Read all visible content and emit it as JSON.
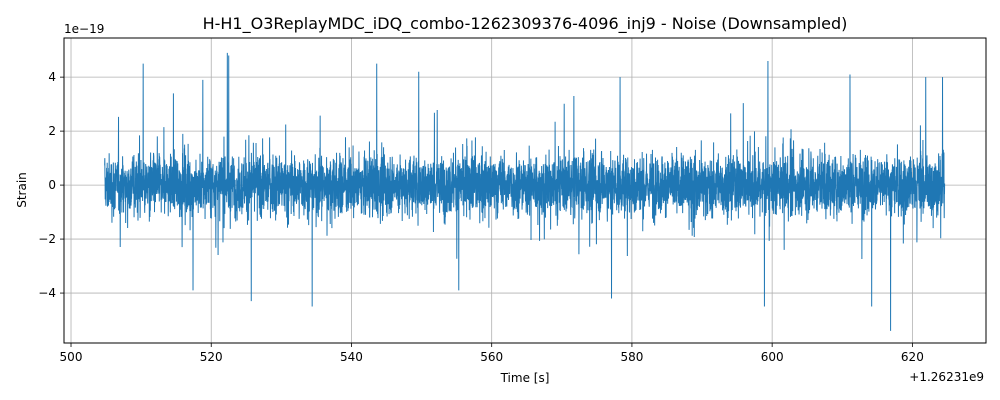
{
  "chart_data": {
    "type": "line",
    "title": "H-H1_O3ReplayMDC_iDQ_combo-1262309376-4096_inj9 - Noise (Downsampled)",
    "xlabel": "Time [s]",
    "ylabel": "Strain",
    "x_offset_text": "+1.26231e9",
    "y_scale_text": "1e−19",
    "xlim": [
      499.0,
      630.5
    ],
    "ylim": [
      -5.85,
      5.45
    ],
    "x_ticks": [
      500,
      520,
      540,
      560,
      580,
      600,
      620
    ],
    "x_tick_labels": [
      "500",
      "520",
      "540",
      "560",
      "580",
      "600",
      "620"
    ],
    "y_ticks": [
      -4,
      -2,
      0,
      2,
      4
    ],
    "y_tick_labels": [
      "−4",
      "−2",
      "0",
      "2",
      "4"
    ],
    "grid": true,
    "line_color": "#1f77b4",
    "series": [
      {
        "x_start": 504.8,
        "x_end": 624.6,
        "typical_amplitude": 1.0,
        "peaks": [
          {
            "x": 510.3,
            "y": 4.5
          },
          {
            "x": 514.6,
            "y": 3.4
          },
          {
            "x": 518.8,
            "y": 3.9
          },
          {
            "x": 522.3,
            "y": 4.9
          },
          {
            "x": 522.5,
            "y": 4.8
          },
          {
            "x": 543.6,
            "y": 4.5
          },
          {
            "x": 549.6,
            "y": 4.2
          },
          {
            "x": 578.3,
            "y": 4.0
          },
          {
            "x": 599.4,
            "y": 4.6
          },
          {
            "x": 611.1,
            "y": 4.1
          },
          {
            "x": 621.9,
            "y": 4.0
          },
          {
            "x": 624.3,
            "y": 4.0
          }
        ],
        "troughs": [
          {
            "x": 517.4,
            "y": -3.9
          },
          {
            "x": 525.7,
            "y": -4.3
          },
          {
            "x": 534.4,
            "y": -4.5
          },
          {
            "x": 555.3,
            "y": -3.9
          },
          {
            "x": 577.1,
            "y": -4.2
          },
          {
            "x": 598.9,
            "y": -4.5
          },
          {
            "x": 614.2,
            "y": -4.5
          },
          {
            "x": 616.9,
            "y": -5.4
          }
        ]
      }
    ]
  }
}
